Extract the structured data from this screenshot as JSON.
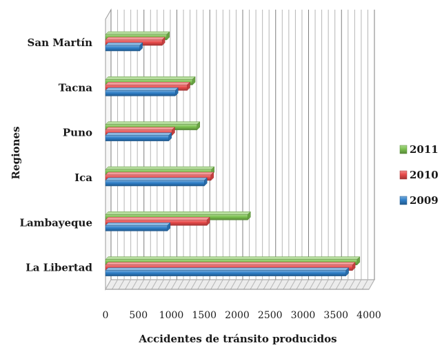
{
  "chart_data": {
    "type": "bar",
    "orientation": "horizontal",
    "style": "3d",
    "categories": [
      "San Martín",
      "Tacna",
      "Puno",
      "Ica",
      "Lambayeque",
      "La Libertad"
    ],
    "series": [
      {
        "name": "2011",
        "color": "#7cc150",
        "values": [
          930,
          1320,
          1390,
          1610,
          2160,
          3820
        ]
      },
      {
        "name": "2010",
        "color": "#e84a4a",
        "values": [
          860,
          1240,
          1010,
          1600,
          1540,
          3750
        ]
      },
      {
        "name": "2009",
        "color": "#2f7fc8",
        "values": [
          520,
          1060,
          960,
          1500,
          940,
          3650
        ]
      }
    ],
    "x_ticks": [
      0,
      500,
      1000,
      1500,
      2000,
      2500,
      3000,
      3500,
      4000
    ],
    "xlim": [
      0,
      4000
    ],
    "xlabel": "Accidentes de tránsito producidos",
    "ylabel": "Regiones",
    "title": "",
    "grid": true,
    "legend_position": "right"
  }
}
